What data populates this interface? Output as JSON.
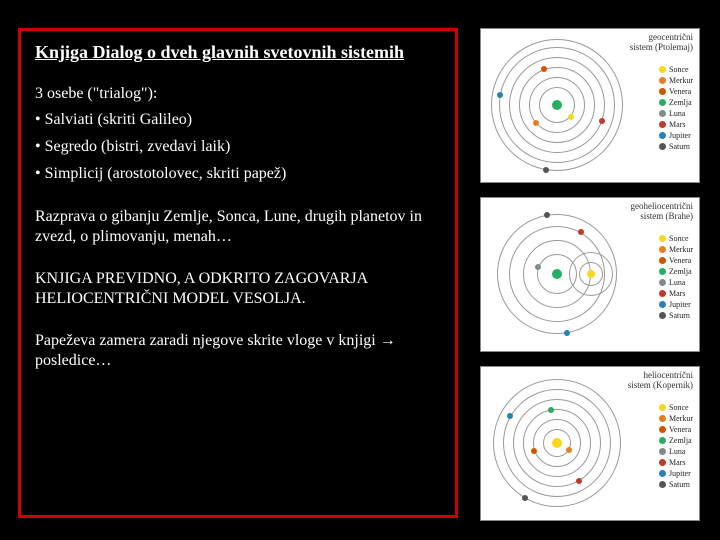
{
  "text": {
    "title": "Knjiga Dialog o dveh glavnih svetovnih sistemih",
    "intro": "3 osebe (\"trialog\"):",
    "bullets": [
      "• Salviati (skriti Galileo)",
      "• Segredo (bistri, zvedavi laik)",
      "• Simplicij (arostotolovec, skriti papež)"
    ],
    "para1": "Razprava o gibanju Zemlje, Sonca, Lune, drugih planetov in zvezd, o plimovanju, menah…",
    "para2": "KNJIGA PREVIDNO, A ODKRITO ZAGOVARJA HELIOCENTRIČNI MODEL VESOLJA.",
    "para3": "Papeževa zamera zaradi njegove skrite vloge v knjigi → posledice…"
  },
  "legend_items": [
    {
      "label": "Sonce",
      "color": "#f9d71c"
    },
    {
      "label": "Merkur",
      "color": "#e67e22"
    },
    {
      "label": "Venera",
      "color": "#d35400"
    },
    {
      "label": "Zemlja",
      "color": "#27ae60"
    },
    {
      "label": "Luna",
      "color": "#7f8c8d"
    },
    {
      "label": "Mars",
      "color": "#c0392b"
    },
    {
      "label": "Jupiter",
      "color": "#2980b9"
    },
    {
      "label": "Saturn",
      "color": "#555555"
    }
  ],
  "diagrams": [
    {
      "label": "geocentrični\nsistem (Ptolemaj)",
      "orbits": [
        18,
        28,
        38,
        48,
        58,
        66
      ],
      "center_color": "#27ae60",
      "dots": [
        {
          "r": 18,
          "angle": 40,
          "color": "#f9d71c"
        },
        {
          "r": 28,
          "angle": 140,
          "color": "#e67e22"
        },
        {
          "r": 38,
          "angle": 250,
          "color": "#d35400"
        },
        {
          "r": 48,
          "angle": 20,
          "color": "#c0392b"
        },
        {
          "r": 58,
          "angle": 190,
          "color": "#2980b9"
        },
        {
          "r": 66,
          "angle": 100,
          "color": "#555555"
        }
      ]
    },
    {
      "label": "geoheliocentrični\nsistem (Brahe)",
      "orbits": [
        20,
        34,
        48,
        60
      ],
      "center_color": "#27ae60",
      "extra_center": {
        "r": 34,
        "angle": 0,
        "color": "#f9d71c",
        "sub_orbits": [
          12,
          22
        ]
      },
      "dots": [
        {
          "r": 20,
          "angle": 200,
          "color": "#7f8c8d"
        },
        {
          "r": 48,
          "angle": 300,
          "color": "#c0392b"
        },
        {
          "r": 60,
          "angle": 80,
          "color": "#2980b9"
        },
        {
          "r": 60,
          "angle": 260,
          "color": "#555555"
        }
      ]
    },
    {
      "label": "heliocentrični\nsistem (Kopernik)",
      "orbits": [
        14,
        24,
        34,
        44,
        54,
        64
      ],
      "center_color": "#f9d71c",
      "dots": [
        {
          "r": 14,
          "angle": 30,
          "color": "#e67e22"
        },
        {
          "r": 24,
          "angle": 160,
          "color": "#d35400"
        },
        {
          "r": 34,
          "angle": 260,
          "color": "#27ae60"
        },
        {
          "r": 44,
          "angle": 60,
          "color": "#c0392b"
        },
        {
          "r": 54,
          "angle": 210,
          "color": "#2980b9"
        },
        {
          "r": 64,
          "angle": 120,
          "color": "#555555"
        }
      ]
    }
  ],
  "colors": {
    "bg": "#000000",
    "border": "#cc0000",
    "text": "#ffffff"
  }
}
